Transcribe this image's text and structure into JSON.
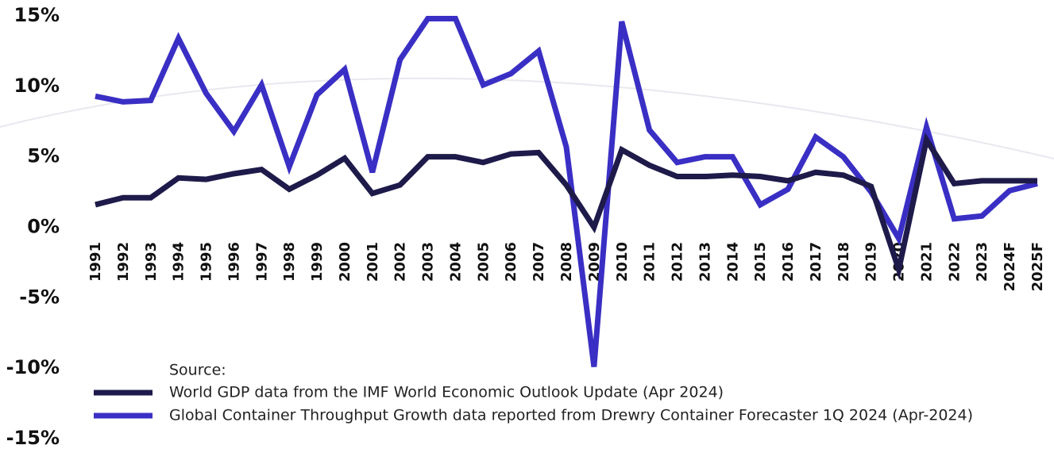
{
  "chart_data": {
    "type": "line",
    "categories": [
      "1991",
      "1992",
      "1993",
      "1994",
      "1995",
      "1996",
      "1997",
      "1998",
      "1999",
      "2000",
      "2001",
      "2002",
      "2003",
      "2004",
      "2005",
      "2006",
      "2007",
      "2008",
      "2009",
      "2010",
      "2011",
      "2012",
      "2013",
      "2014",
      "2015",
      "2016",
      "2017",
      "2018",
      "2019",
      "2020",
      "2021",
      "2022",
      "2023",
      "2024F",
      "2025F"
    ],
    "series": [
      {
        "name": "World GDP data from the IMF World Economic Outlook Update (Apr 2024)",
        "color": "#1e1a4a",
        "values": [
          1.6,
          2.1,
          2.1,
          3.5,
          3.4,
          3.8,
          4.1,
          2.7,
          3.7,
          4.9,
          2.4,
          3.0,
          5.0,
          5.0,
          4.6,
          5.2,
          5.3,
          3.0,
          0.0,
          5.5,
          4.4,
          3.6,
          3.6,
          3.7,
          3.6,
          3.3,
          3.9,
          3.7,
          2.9,
          -3.0,
          6.2,
          3.1,
          3.3,
          3.3,
          3.3
        ]
      },
      {
        "name": "Global Container Throughput Growth data reported from Drewry Container Forecaster 1Q 2024 (Apr-2024)",
        "color": "#3a2fc4",
        "values": [
          9.3,
          8.9,
          9.0,
          13.4,
          9.5,
          6.8,
          10.1,
          4.3,
          9.4,
          11.2,
          3.9,
          11.9,
          14.8,
          14.8,
          10.1,
          10.9,
          12.5,
          5.7,
          -9.9,
          14.6,
          6.9,
          4.6,
          5.0,
          5.0,
          1.6,
          2.7,
          6.4,
          5.0,
          2.5,
          -0.8,
          7.1,
          0.6,
          0.8,
          2.6,
          3.1
        ]
      }
    ],
    "legend_title": "Source:",
    "ylim": [
      -15,
      15
    ],
    "yticks": [
      {
        "value": -15,
        "label": "-15%"
      },
      {
        "value": -10,
        "label": "-10%"
      },
      {
        "value": -5,
        "label": "-5%"
      },
      {
        "value": 0,
        "label": "0%"
      },
      {
        "value": 5,
        "label": "5%"
      },
      {
        "value": 10,
        "label": "10%"
      },
      {
        "value": 15,
        "label": "15%"
      }
    ],
    "grid": false
  }
}
